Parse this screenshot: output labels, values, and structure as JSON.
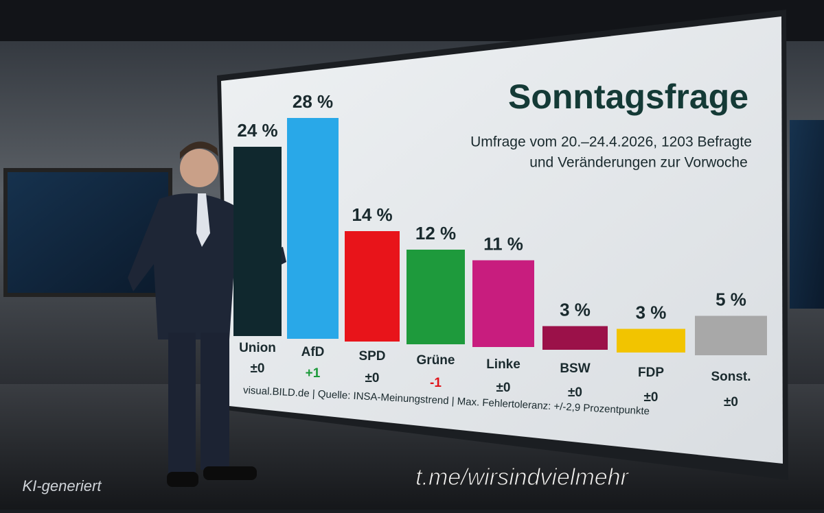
{
  "chart_data": {
    "type": "bar",
    "title": "Sonntagsfrage",
    "subtitle": [
      "Umfrage vom 20.–24.4.2026, 1203 Befragte",
      "und Veränderungen zur Vorwoche"
    ],
    "categories": [
      "Union",
      "AfD",
      "SPD",
      "Grüne",
      "Linke",
      "BSW",
      "FDP",
      "Sonst."
    ],
    "values": [
      24,
      28,
      14,
      12,
      11,
      3,
      3,
      5
    ],
    "value_labels": [
      "24 %",
      "28 %",
      "14 %",
      "12 %",
      "11 %",
      "3 %",
      "3 %",
      "5 %"
    ],
    "colors": [
      "#10282e",
      "#29a8e8",
      "#e8141a",
      "#1e9a3c",
      "#c81d7e",
      "#9b1149",
      "#f2c400",
      "#a8a8a8"
    ],
    "changes": [
      "±0",
      "+1",
      "±0",
      "-1",
      "±0",
      "±0",
      "±0",
      "±0"
    ],
    "change_colors": [
      "#1a2a2e",
      "#1c9a3a",
      "#1a2a2e",
      "#e0141a",
      "#1a2a2e",
      "#1a2a2e",
      "#1a2a2e",
      "#1a2a2e"
    ],
    "source": "visual.BILD.de | Quelle: INSA-Meinungstrend | Max. Fehlertoleranz: +/-2,9 Prozentpunkte"
  },
  "watermarks": {
    "left": "KI-generiert",
    "center": "t.me/wirsindvielmehr"
  }
}
